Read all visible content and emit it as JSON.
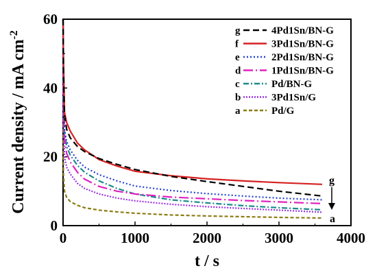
{
  "chart_data": {
    "type": "line",
    "xlabel": "t / s",
    "ylabel": "Current density / mA cm",
    "ylabel_sup": "-2",
    "xlim": [
      0,
      4000
    ],
    "ylim": [
      0,
      60
    ],
    "x_ticks": [
      "0",
      "1000",
      "2000",
      "3000",
      "4000"
    ],
    "y_ticks": [
      "0",
      "20",
      "40",
      "60"
    ],
    "grid": false,
    "legend_position": "top-right",
    "x": [
      5,
      20,
      50,
      100,
      200,
      300,
      500,
      750,
      1000,
      1500,
      2000,
      2500,
      3000,
      3600
    ],
    "series": [
      {
        "letter": "g",
        "name": "4Pd1Sn/BN-G",
        "color": "#000000",
        "dash": "9,5",
        "values": [
          45,
          32,
          28,
          25.5,
          23,
          21.5,
          19.5,
          17.8,
          16.3,
          14.3,
          12.8,
          11.4,
          10,
          8.6
        ]
      },
      {
        "letter": "f",
        "name": "3Pd1Sn/BN-G",
        "color": "#d62020",
        "dash": "",
        "values": [
          50,
          33,
          30,
          27.5,
          24,
          22,
          19.2,
          17.3,
          15.8,
          14.5,
          13.6,
          13,
          12.5,
          12
        ]
      },
      {
        "letter": "e",
        "name": "2Pd1Sn/BN-G",
        "color": "#1f3fd6",
        "dash": "2,3",
        "values": [
          42,
          28,
          24.5,
          22,
          19,
          17,
          14.8,
          13,
          11.5,
          10.2,
          9.3,
          8.6,
          8,
          7.5
        ]
      },
      {
        "letter": "d",
        "name": "1Pd1Sn/BN-G",
        "color": "#e020c0",
        "dash": "14,4,2,4",
        "values": [
          38,
          25,
          21,
          18.5,
          15.5,
          13.5,
          11.4,
          10,
          9.2,
          8.3,
          7.8,
          7.3,
          6.9,
          6.4
        ]
      },
      {
        "letter": "c",
        "name": "Pd/BN-G",
        "color": "#1a8a8a",
        "dash": "8,3,2,3",
        "values": [
          38,
          27,
          23,
          20.5,
          17.5,
          15.5,
          13,
          10.8,
          9.2,
          7.5,
          6.6,
          5.8,
          5.2,
          4.6
        ]
      },
      {
        "letter": "b",
        "name": "3Pd1Sn/G",
        "color": "#9b30e0",
        "dash": "2,2",
        "values": [
          30,
          20,
          17,
          15,
          12.3,
          10.8,
          9.2,
          8,
          7.2,
          6.2,
          5.5,
          5,
          4.5,
          3.9
        ]
      },
      {
        "letter": "a",
        "name": "Pd/G",
        "color": "#8b7a10",
        "dash": "5,3",
        "values": [
          15,
          10,
          8.2,
          7,
          5.9,
          5.2,
          4.5,
          4,
          3.6,
          3.1,
          2.8,
          2.6,
          2.4,
          2.2
        ]
      }
    ],
    "end_labels": {
      "top": "g",
      "bottom": "a"
    }
  }
}
